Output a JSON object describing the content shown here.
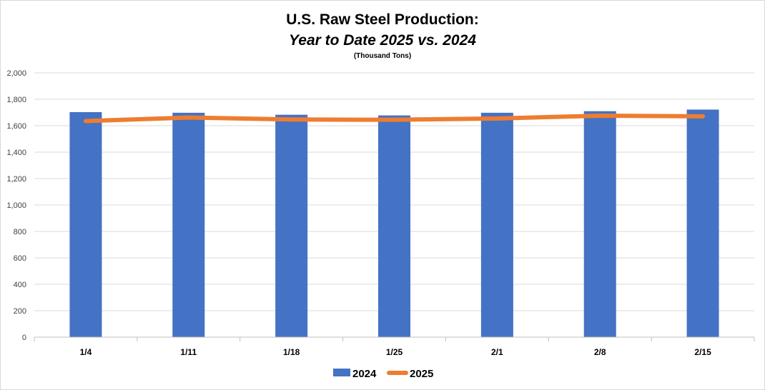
{
  "chart_data": {
    "type": "bar",
    "title": "U.S. Raw Steel Production:",
    "subtitle": "Year to Date 2025 vs. 2024",
    "units_note": "(Thousand Tons)",
    "categories": [
      "1/4",
      "1/11",
      "1/18",
      "1/25",
      "2/1",
      "2/8",
      "2/15"
    ],
    "ylim": [
      0,
      2000
    ],
    "yticks": [
      0,
      200,
      400,
      600,
      800,
      1000,
      1200,
      1400,
      1600,
      1800,
      2000
    ],
    "ytick_labels": [
      "0",
      "200",
      "400",
      "600",
      "800",
      "1,000",
      "1,200",
      "1,400",
      "1,600",
      "1,800",
      "2,000"
    ],
    "grid": true,
    "legend_position": "bottom",
    "series": [
      {
        "name": "2024",
        "type": "bar",
        "color": "#4472c4",
        "values": [
          1703,
          1698,
          1683,
          1678,
          1698,
          1710,
          1722
        ]
      },
      {
        "name": "2025",
        "type": "line",
        "color": "#ed7d31",
        "values": [
          1635,
          1662,
          1647,
          1645,
          1655,
          1676,
          1671
        ]
      }
    ]
  }
}
